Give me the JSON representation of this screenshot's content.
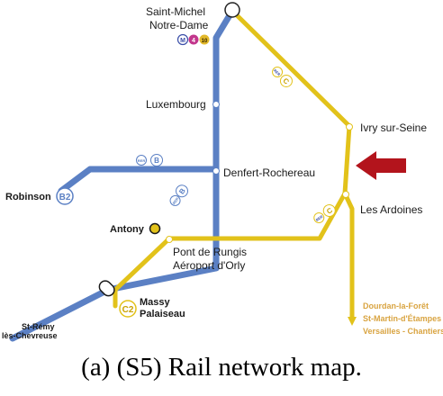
{
  "colors": {
    "rer_b": "#5b80c4",
    "rer_c": "#e2c21a",
    "arrow": "#b3141c",
    "label_orange": "#d9a441"
  },
  "stations": {
    "saint_michel_line1": "Saint-Michel",
    "saint_michel_line2": "Notre-Dame",
    "luxembourg": "Luxembourg",
    "denfert": "Denfert-Rochereau",
    "robinson": "Robinson",
    "antony": "Antony",
    "st_remy_line1": "St-Rémy",
    "st_remy_line2": "lès-Chevreuse",
    "massy_line1": "Massy",
    "massy_line2": "Palaiseau",
    "ivry": "Ivry sur-Seine",
    "ardoines": "Les Ardoines",
    "rungis_line1": "Pont de Rungis",
    "rungis_line2": "Aéroport d'Orly"
  },
  "terminus": {
    "line1": "Dourdan-la-Forêt",
    "line2": "St-Martin-d'Étampes",
    "line3": "Versailles - Chantiers"
  },
  "badges": {
    "b2": "B2",
    "c2": "C2",
    "b": "B",
    "c": "C",
    "rer": "RER",
    "metro_m": "M",
    "metro_4": "4",
    "metro_10": "10"
  },
  "caption": "(a)  (S5) Rail network map."
}
